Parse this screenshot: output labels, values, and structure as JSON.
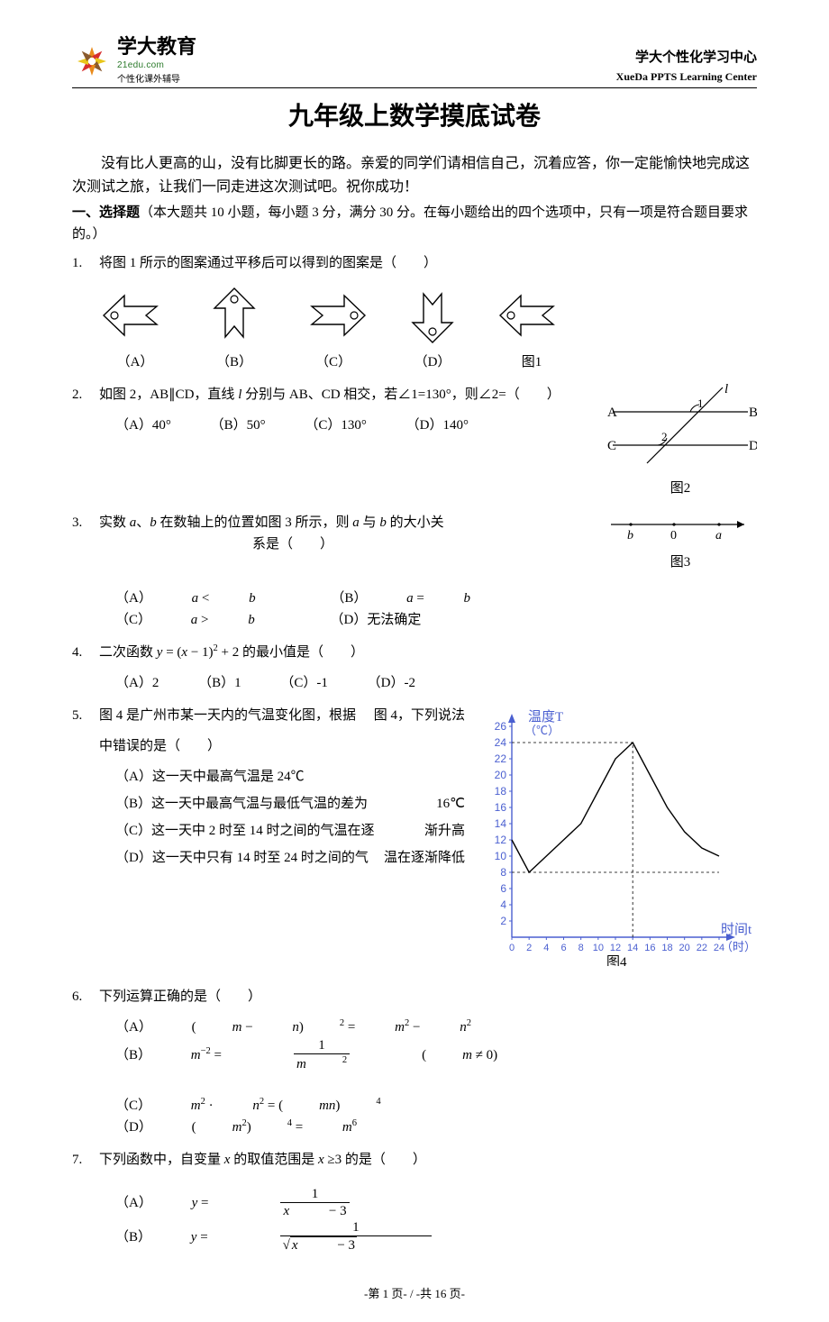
{
  "header": {
    "logo_cn": "学大教育",
    "logo_en": "21edu.com",
    "logo_sub": "个性化课外辅导",
    "right_cn": "学大个性化学习中心",
    "right_en": "XueDa PPTS Learning Center"
  },
  "title": "九年级上数学摸底试卷",
  "intro": "没有比人更高的山，没有比脚更长的路。亲爱的同学们请相信自己，沉着应答，你一定能愉快地完成这次测试之旅，让我们一同走进这次测试吧。祝你成功！",
  "section": {
    "label": "一、选择题",
    "desc": "（本大题共 10 小题，每小题 3 分，满分 30 分。在每小题给出的四个选项中，只有一项是符合题目要求的。）"
  },
  "q1": {
    "num": "1.",
    "stem": "将图 1 所示的图案通过平移后可以得到的图案是（　　）",
    "labels": [
      "（A）",
      "（B）",
      "（C）",
      "（D）",
      "图1"
    ]
  },
  "q2": {
    "num": "2.",
    "stem_a": "如图 2，AB∥CD，直线 ",
    "stem_b": " 分别与 AB、CD 相交，若∠",
    "stem_c": "1=130°，则∠2=（　　）",
    "opts": [
      "（A）40°",
      "（B）50°",
      "（C）130°",
      "（D）140°"
    ],
    "fig_label": "图2",
    "A": "A",
    "B": "B",
    "C": "C",
    "D": "D",
    "l": "l",
    "n1": "1",
    "n2": "2"
  },
  "q3": {
    "num": "3.",
    "stem_a": "实数 ",
    "stem_b": "、",
    "stem_c": " 在数轴上的位置如图 3 所示，则 ",
    "stem_d": " 与 ",
    "stem_e": " 的大小关",
    "stem_f": "系是（　　）",
    "optA": "（A）",
    "optB": "（B）",
    "optC": "（C）",
    "optD": "（D）无法确定",
    "fig_label": "图3",
    "a": "a",
    "b": "b",
    "zero": "0"
  },
  "q4": {
    "num": "4.",
    "stem_a": "二次函数 ",
    "stem_b": " 的最小值是（　　）",
    "opts": [
      "（A）2",
      "（B）1",
      "（C）-1",
      "（D）-2"
    ]
  },
  "q5": {
    "num": "5.",
    "stem_a": "图 4 是广州市某一天内的气温变化图，根据",
    "stem_b": "图 4，下列说法",
    "stem_c": "中错误的是（　　）",
    "optA": "（A）这一天中最高气温是 24℃",
    "optB_a": "（B）这一天中最高气温与最低气温的差为",
    "optB_b": "16℃",
    "optC_a": "（C）这一天中 2 时至 14 时之间的气温在逐",
    "optC_b": "渐升高",
    "optD_a": "（D）这一天中只有 14 时至 24 时之间的气",
    "optD_b": "温在逐渐降低",
    "chart": {
      "fig_label": "图4",
      "ylabel": "温度T",
      "yunit": "（℃）",
      "xlabel": "时间t",
      "xunit": "（时）",
      "ytick_min": 2,
      "ytick_max": 26,
      "ytick_step": 2,
      "xtick_min": 0,
      "xtick_max": 24,
      "xtick_step": 2,
      "axis_color": "#4a5fd0",
      "line_color": "#000000",
      "data": [
        [
          0,
          12
        ],
        [
          2,
          8
        ],
        [
          4,
          10
        ],
        [
          6,
          12
        ],
        [
          8,
          14
        ],
        [
          10,
          18
        ],
        [
          12,
          22
        ],
        [
          14,
          24
        ],
        [
          16,
          20
        ],
        [
          18,
          16
        ],
        [
          20,
          13
        ],
        [
          22,
          11
        ],
        [
          24,
          10
        ]
      ]
    }
  },
  "q6": {
    "num": "6.",
    "stem": "下列运算正确的是（　　）",
    "labA": "（A）",
    "labB": "（B）",
    "labC": "（C）",
    "labD": "（D）"
  },
  "q7": {
    "num": "7.",
    "stem_a": "下列函数中，自变量 ",
    "stem_b": " 的取值范围是 ",
    "stem_c": "≥3 的是（　　）",
    "labA": "（A）",
    "labB": "（B）"
  },
  "footer": "-第 1 页- / -共 16 页-"
}
